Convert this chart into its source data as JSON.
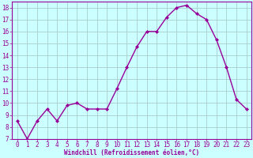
{
  "x": [
    0,
    1,
    2,
    3,
    4,
    5,
    6,
    7,
    8,
    9,
    10,
    11,
    12,
    13,
    14,
    15,
    16,
    17,
    18,
    19,
    20,
    21,
    22,
    23
  ],
  "y": [
    8.5,
    7.0,
    8.5,
    9.5,
    8.5,
    9.8,
    10.0,
    9.5,
    9.5,
    9.5,
    11.2,
    13.0,
    14.7,
    16.0,
    16.0,
    17.2,
    18.0,
    18.2,
    17.5,
    17.0,
    15.3,
    13.0,
    10.3,
    9.5
  ],
  "line_color": "#990099",
  "marker": "D",
  "marker_size": 2.0,
  "bg_color": "#ccffff",
  "grid_color": "#aacccc",
  "xlabel": "Windchill (Refroidissement éolien,°C)",
  "xlabel_color": "#990099",
  "tick_color": "#990099",
  "ylim": [
    7,
    18.5
  ],
  "xlim": [
    -0.5,
    23.5
  ],
  "yticks": [
    7,
    8,
    9,
    10,
    11,
    12,
    13,
    14,
    15,
    16,
    17,
    18
  ],
  "xticks": [
    0,
    1,
    2,
    3,
    4,
    5,
    6,
    7,
    8,
    9,
    10,
    11,
    12,
    13,
    14,
    15,
    16,
    17,
    18,
    19,
    20,
    21,
    22,
    23
  ],
  "tick_fontsize": 5.5,
  "xlabel_fontsize": 5.5,
  "linewidth": 1.0
}
